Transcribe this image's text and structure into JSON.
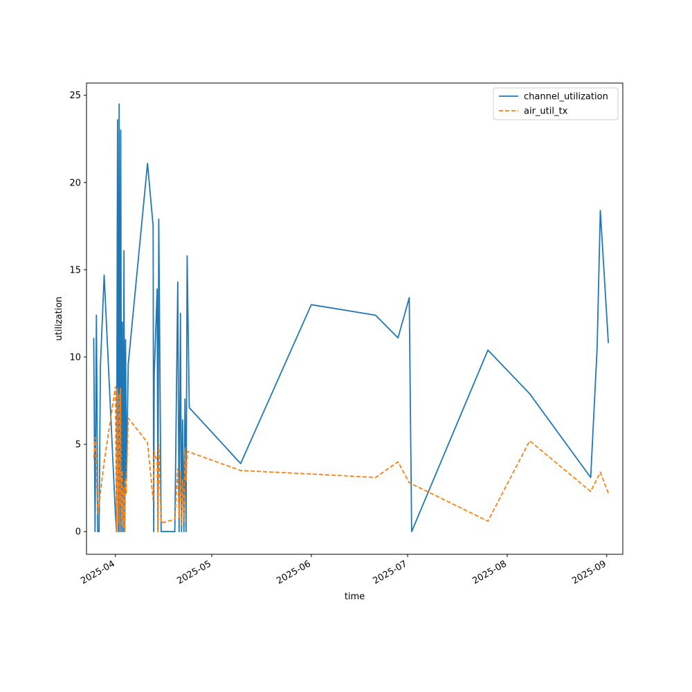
{
  "chart_data": {
    "type": "line",
    "title": "",
    "xlabel": "time",
    "ylabel": "utilization",
    "x_type": "date",
    "xlim": [
      "2025-03-23",
      "2025-09-06"
    ],
    "ylim": [
      -1.3,
      25.7
    ],
    "x_ticks": [
      {
        "date": "2025-04-01",
        "label": "2025-04"
      },
      {
        "date": "2025-05-01",
        "label": "2025-05"
      },
      {
        "date": "2025-06-01",
        "label": "2025-06"
      },
      {
        "date": "2025-07-01",
        "label": "2025-07"
      },
      {
        "date": "2025-08-01",
        "label": "2025-08"
      },
      {
        "date": "2025-09-01",
        "label": "2025-09"
      }
    ],
    "y_ticks": [
      {
        "value": 0,
        "label": "0"
      },
      {
        "value": 5,
        "label": "5"
      },
      {
        "value": 10,
        "label": "10"
      },
      {
        "value": 15,
        "label": "15"
      },
      {
        "value": 20,
        "label": "20"
      },
      {
        "value": 25,
        "label": "25"
      }
    ],
    "grid": false,
    "legend": {
      "position": "top-right"
    },
    "series": [
      {
        "name": "channel_utilization",
        "color": "#1f77b4",
        "style": "solid",
        "points": [
          [
            "2025-03-25T06:00",
            11.1
          ],
          [
            "2025-03-25T16:00",
            0.0
          ],
          [
            "2025-03-26T02:00",
            12.4
          ],
          [
            "2025-03-26T12:00",
            0.0
          ],
          [
            "2025-03-26T22:00",
            0.0
          ],
          [
            "2025-03-27T08:00",
            9.5
          ],
          [
            "2025-03-28T12:00",
            14.7
          ],
          [
            "2025-04-01T00:00",
            1.0
          ],
          [
            "2025-04-01T08:00",
            0.0
          ],
          [
            "2025-04-01T16:00",
            23.6
          ],
          [
            "2025-04-01T22:00",
            0.0
          ],
          [
            "2025-04-02T04:00",
            24.5
          ],
          [
            "2025-04-02T10:00",
            0.0
          ],
          [
            "2025-04-02T16:00",
            23.0
          ],
          [
            "2025-04-02T22:00",
            0.0
          ],
          [
            "2025-04-03T04:00",
            12.0
          ],
          [
            "2025-04-03T10:00",
            0.0
          ],
          [
            "2025-04-03T16:00",
            16.1
          ],
          [
            "2025-04-03T22:00",
            0.0
          ],
          [
            "2025-04-04T04:00",
            11.0
          ],
          [
            "2025-04-04T10:00",
            3.0
          ],
          [
            "2025-04-05T00:00",
            9.6
          ],
          [
            "2025-04-11T00:00",
            21.1
          ],
          [
            "2025-04-12T18:00",
            17.5
          ],
          [
            "2025-04-12T22:00",
            0.0
          ],
          [
            "2025-04-13T02:00",
            9.0
          ],
          [
            "2025-04-14T00:00",
            13.9
          ],
          [
            "2025-04-14T06:00",
            0.0
          ],
          [
            "2025-04-14T12:00",
            17.9
          ],
          [
            "2025-04-15T06:00",
            0.0
          ],
          [
            "2025-04-19T00:00",
            0.0
          ],
          [
            "2025-04-19T12:00",
            0.0
          ],
          [
            "2025-04-20T10:00",
            14.3
          ],
          [
            "2025-04-20T20:00",
            0.0
          ],
          [
            "2025-04-21T06:00",
            12.5
          ],
          [
            "2025-04-21T14:00",
            0.0
          ],
          [
            "2025-04-21T22:00",
            6.4
          ],
          [
            "2025-04-22T08:00",
            0.0
          ],
          [
            "2025-04-22T16:00",
            7.6
          ],
          [
            "2025-04-23T00:00",
            0.0
          ],
          [
            "2025-04-23T08:00",
            15.8
          ],
          [
            "2025-04-24T00:00",
            7.1
          ],
          [
            "2025-05-10T00:00",
            3.9
          ],
          [
            "2025-06-01T00:00",
            13.0
          ],
          [
            "2025-06-21T00:00",
            12.4
          ],
          [
            "2025-06-28T00:00",
            11.1
          ],
          [
            "2025-07-01T12:00",
            13.4
          ],
          [
            "2025-07-02T06:00",
            0.0
          ],
          [
            "2025-07-26T00:00",
            10.4
          ],
          [
            "2025-08-08T00:00",
            7.9
          ],
          [
            "2025-08-27T00:00",
            3.1
          ],
          [
            "2025-08-29T00:00",
            10.5
          ],
          [
            "2025-08-30T00:00",
            18.4
          ],
          [
            "2025-09-01T12:00",
            10.8
          ]
        ]
      },
      {
        "name": "air_util_tx",
        "color": "#ff7f0e",
        "style": "dashed",
        "points": [
          [
            "2025-03-25T06:00",
            4.2
          ],
          [
            "2025-03-25T18:00",
            5.4
          ],
          [
            "2025-03-26T12:00",
            1.0
          ],
          [
            "2025-03-28T12:00",
            4.0
          ],
          [
            "2025-04-01T00:00",
            8.3
          ],
          [
            "2025-04-01T08:00",
            0.0
          ],
          [
            "2025-04-01T14:00",
            8.2
          ],
          [
            "2025-04-01T20:00",
            0.5
          ],
          [
            "2025-04-02T02:00",
            7.9
          ],
          [
            "2025-04-02T08:00",
            1.5
          ],
          [
            "2025-04-02T14:00",
            8.2
          ],
          [
            "2025-04-02T20:00",
            0.3
          ],
          [
            "2025-04-03T02:00",
            3.5
          ],
          [
            "2025-04-03T08:00",
            0.2
          ],
          [
            "2025-04-03T14:00",
            2.5
          ],
          [
            "2025-04-03T20:00",
            0.0
          ],
          [
            "2025-04-04T02:00",
            3.0
          ],
          [
            "2025-04-04T08:00",
            2.2
          ],
          [
            "2025-04-05T00:00",
            6.5
          ],
          [
            "2025-04-11T00:00",
            5.1
          ],
          [
            "2025-04-12T18:00",
            1.8
          ],
          [
            "2025-04-13T02:00",
            4.6
          ],
          [
            "2025-04-14T00:00",
            4.0
          ],
          [
            "2025-04-14T06:00",
            0.0
          ],
          [
            "2025-04-14T12:00",
            5.0
          ],
          [
            "2025-04-15T06:00",
            0.5
          ],
          [
            "2025-04-19T12:00",
            0.7
          ],
          [
            "2025-04-20T10:00",
            3.6
          ],
          [
            "2025-04-20T20:00",
            0.8
          ],
          [
            "2025-04-21T06:00",
            3.5
          ],
          [
            "2025-04-21T14:00",
            0.4
          ],
          [
            "2025-04-21T22:00",
            3.0
          ],
          [
            "2025-04-22T08:00",
            0.6
          ],
          [
            "2025-04-22T16:00",
            4.8
          ],
          [
            "2025-04-23T00:00",
            2.9
          ],
          [
            "2025-04-23T08:00",
            4.6
          ],
          [
            "2025-05-10T00:00",
            3.5
          ],
          [
            "2025-06-01T00:00",
            3.3
          ],
          [
            "2025-06-21T00:00",
            3.1
          ],
          [
            "2025-06-28T00:00",
            4.0
          ],
          [
            "2025-07-01T12:00",
            2.8
          ],
          [
            "2025-07-26T00:00",
            0.6
          ],
          [
            "2025-08-08T00:00",
            5.2
          ],
          [
            "2025-08-27T00:00",
            2.3
          ],
          [
            "2025-08-30T00:00",
            3.4
          ],
          [
            "2025-09-01T12:00",
            2.2
          ]
        ]
      }
    ]
  }
}
